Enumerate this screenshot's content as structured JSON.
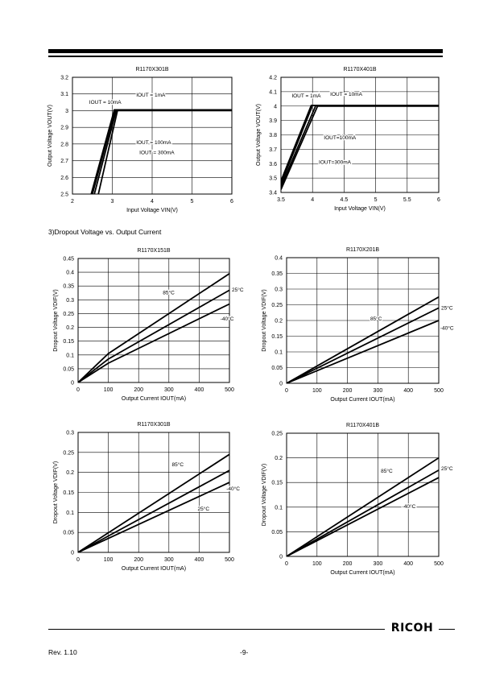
{
  "section_heading": "3)Dropout Voltage vs. Output Current",
  "footer": {
    "revision": "Rev. 1.10",
    "page": "-9-",
    "logo": "RICOH"
  },
  "chart_data": [
    {
      "type": "line",
      "title": "R1170X301B",
      "xlabel": "Input Voltage VIN(V)",
      "ylabel": "Output Voltage VOUT(V)",
      "xlim": [
        2,
        6
      ],
      "ylim": [
        2.5,
        3.2
      ],
      "xticks": [
        "2",
        "3",
        "4",
        "5",
        "6"
      ],
      "yticks": [
        "2.5",
        "2.6",
        "2.7",
        "2.8",
        "2.9",
        "3",
        "3.1",
        "3.2"
      ],
      "grid": true,
      "series": [
        {
          "name": "IOUT = 1mA",
          "x": [
            2.47,
            3.05,
            6
          ],
          "y": [
            2.5,
            3.005,
            3.005
          ]
        },
        {
          "name": "IOUT = 10mA",
          "x": [
            2.5,
            3.07,
            6
          ],
          "y": [
            2.5,
            3.004,
            3.004
          ]
        },
        {
          "name": "IOUT = 100mA",
          "x": [
            2.55,
            3.1,
            6
          ],
          "y": [
            2.5,
            3.002,
            3.002
          ]
        },
        {
          "name": "IOUT = 300mA",
          "x": [
            2.65,
            3.13,
            6
          ],
          "y": [
            2.5,
            3.0,
            3.0
          ]
        }
      ],
      "labels": [
        {
          "text": "IOUT = 1mA",
          "x": 3.6,
          "y": 3.085
        },
        {
          "text": "IOUT = 10mA",
          "x": 2.42,
          "y": 3.04
        },
        {
          "text": "IOUT = 100mA",
          "x": 3.6,
          "y": 2.8
        },
        {
          "text": "IOUT = 300mA",
          "x": 3.68,
          "y": 2.74
        }
      ]
    },
    {
      "type": "line",
      "title": "R1170X401B",
      "xlabel": "Input Voltage VIN(V)",
      "ylabel": "Output Voltage VOUT(V)",
      "xlim": [
        3.5,
        6
      ],
      "ylim": [
        3.4,
        4.2
      ],
      "xticks": [
        "3.5",
        "4",
        "4.5",
        "5",
        "5.5",
        "6"
      ],
      "yticks": [
        "3.4",
        "3.5",
        "3.6",
        "3.7",
        "3.8",
        "3.9",
        "4",
        "4.1",
        "4.2"
      ],
      "grid": true,
      "series": [
        {
          "name": "IOUT = 1mA",
          "x": [
            3.5,
            3.98,
            6
          ],
          "y": [
            3.48,
            4.005,
            4.005
          ]
        },
        {
          "name": "IOUT = 10mA",
          "x": [
            3.5,
            4.0,
            6
          ],
          "y": [
            3.46,
            4.004,
            4.004
          ]
        },
        {
          "name": "IOUT=100mA",
          "x": [
            3.5,
            4.05,
            6
          ],
          "y": [
            3.44,
            4.002,
            4.002
          ]
        },
        {
          "name": "IOUT=300mA",
          "x": [
            3.5,
            4.08,
            6
          ],
          "y": [
            3.42,
            4.0,
            4.0
          ]
        }
      ],
      "labels": [
        {
          "text": "IOUT = 1mA",
          "x": 3.67,
          "y": 4.06
        },
        {
          "text": "IOUT = 10mA",
          "x": 4.28,
          "y": 4.07
        },
        {
          "text": "IOUT=100mA",
          "x": 4.18,
          "y": 3.77
        },
        {
          "text": "IOUT=300mA",
          "x": 4.1,
          "y": 3.6
        }
      ]
    },
    {
      "type": "line",
      "title": "R1170X151B",
      "xlabel": "Output Current IOUT(mA)",
      "ylabel": "Dropout Voltage VDIF(V)",
      "xlim": [
        0,
        500
      ],
      "ylim": [
        0,
        0.45
      ],
      "xticks": [
        "0",
        "100",
        "200",
        "300",
        "400",
        "500"
      ],
      "yticks": [
        "0",
        "0.05",
        "0.1",
        "0.15",
        "0.2",
        "0.25",
        "0.3",
        "0.35",
        "0.4",
        "0.45"
      ],
      "grid": true,
      "series": [
        {
          "name": "85°C",
          "x": [
            0,
            100,
            500
          ],
          "y": [
            0,
            0.105,
            0.395
          ]
        },
        {
          "name": "25°C",
          "x": [
            0,
            100,
            500
          ],
          "y": [
            0,
            0.085,
            0.335
          ]
        },
        {
          "name": "-40°C",
          "x": [
            0,
            100,
            500
          ],
          "y": [
            0,
            0.07,
            0.285
          ]
        }
      ],
      "labels": [
        {
          "text": "85°C",
          "x": 280,
          "y": 0.32
        },
        {
          "text": "25°C",
          "x": 508,
          "y": 0.33
        },
        {
          "text": "-40°C",
          "x": 470,
          "y": 0.225
        }
      ]
    },
    {
      "type": "line",
      "title": "R1170X201B",
      "xlabel": "Output Current IOUT(mA)",
      "ylabel": "Dropout Voltage VDIF(V)",
      "xlim": [
        0,
        500
      ],
      "ylim": [
        0,
        0.4
      ],
      "xticks": [
        "0",
        "100",
        "200",
        "300",
        "400",
        "500"
      ],
      "yticks": [
        "0",
        "0.05",
        "0.1",
        "0.15",
        "0.2",
        "0.25",
        "0.3",
        "0.35",
        "0.4"
      ],
      "grid": true,
      "series": [
        {
          "name": "85°C",
          "x": [
            0,
            500
          ],
          "y": [
            0,
            0.275
          ]
        },
        {
          "name": "25°C",
          "x": [
            0,
            500
          ],
          "y": [
            0,
            0.24
          ]
        },
        {
          "name": "-40°C",
          "x": [
            0,
            500
          ],
          "y": [
            0,
            0.2
          ]
        }
      ],
      "labels": [
        {
          "text": "85°C",
          "x": 275,
          "y": 0.2
        },
        {
          "text": "25°C",
          "x": 508,
          "y": 0.235
        },
        {
          "text": "-40°C",
          "x": 505,
          "y": 0.17
        }
      ]
    },
    {
      "type": "line",
      "title": "R1170X301B",
      "xlabel": "Output Current IOUT(mA)",
      "ylabel": "Dropout Voltage VDIF(V)",
      "xlim": [
        0,
        500
      ],
      "ylim": [
        0,
        0.3
      ],
      "xticks": [
        "0",
        "100",
        "200",
        "300",
        "400",
        "500"
      ],
      "yticks": [
        "0",
        "0.05",
        "0.1",
        "0.15",
        "0.2",
        "0.25",
        "0.3"
      ],
      "grid": true,
      "series": [
        {
          "name": "85°C",
          "x": [
            0,
            500
          ],
          "y": [
            0,
            0.245
          ]
        },
        {
          "name": "25°C",
          "x": [
            0,
            500
          ],
          "y": [
            0,
            0.205
          ]
        },
        {
          "name": "-40°C",
          "x": [
            0,
            500
          ],
          "y": [
            0,
            0.175
          ]
        }
      ],
      "labels": [
        {
          "text": "85°C",
          "x": 310,
          "y": 0.215
        },
        {
          "text": "25°C",
          "x": 395,
          "y": 0.105
        },
        {
          "text": "-40°C",
          "x": 490,
          "y": 0.155
        }
      ]
    },
    {
      "type": "line",
      "title": "R1170X401B",
      "xlabel": "Output Current IOUT(mA)",
      "ylabel": "Dropout Voltage VDIF(V)",
      "xlim": [
        0,
        500
      ],
      "ylim": [
        0,
        0.25
      ],
      "xticks": [
        "0",
        "100",
        "200",
        "300",
        "400",
        "500"
      ],
      "yticks": [
        "0",
        "0.05",
        "0.1",
        "0.15",
        "0.2",
        "0.25"
      ],
      "grid": true,
      "series": [
        {
          "name": "85°C",
          "x": [
            0,
            500
          ],
          "y": [
            0,
            0.2
          ]
        },
        {
          "name": "25°C",
          "x": [
            0,
            500
          ],
          "y": [
            0,
            0.175
          ]
        },
        {
          "name": "-40°C",
          "x": [
            0,
            500
          ],
          "y": [
            0,
            0.16
          ]
        }
      ],
      "labels": [
        {
          "text": "85°C",
          "x": 310,
          "y": 0.17
        },
        {
          "text": "25°C",
          "x": 508,
          "y": 0.175
        },
        {
          "text": "-40°C",
          "x": 380,
          "y": 0.098
        }
      ]
    }
  ]
}
